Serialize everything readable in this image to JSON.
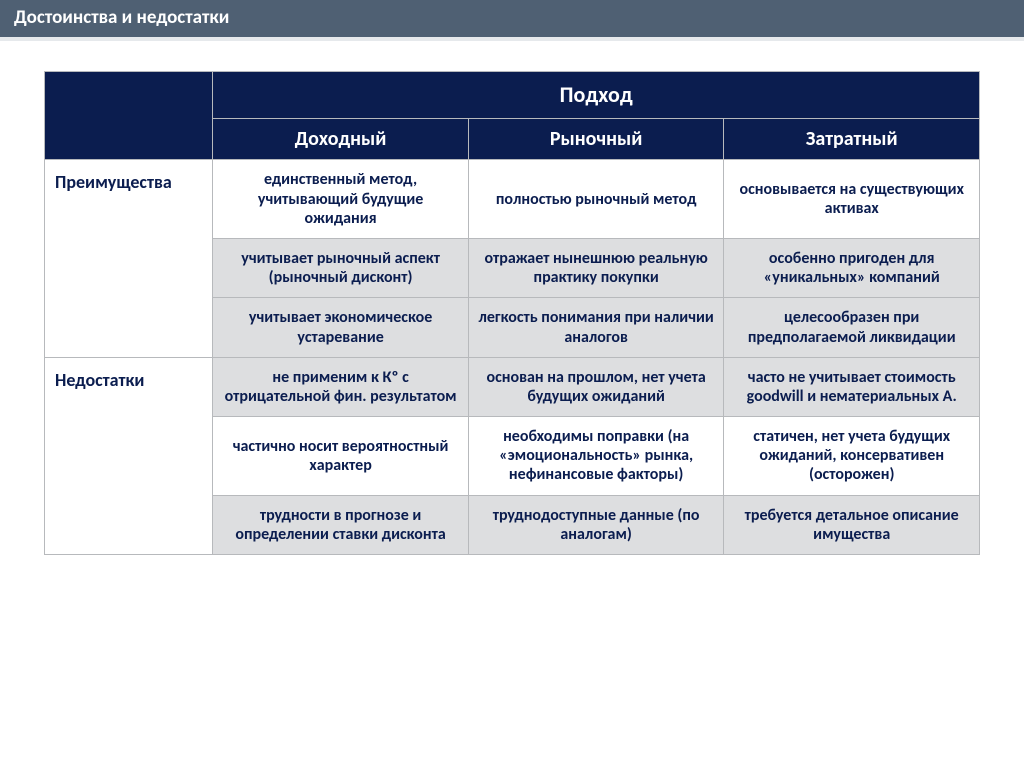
{
  "title": "Достоинства и недостатки",
  "table": {
    "mainHeader": "Подход",
    "subHeaders": [
      "Доходный",
      "Рыночный",
      "Затратный"
    ],
    "sections": [
      {
        "label": "Преимущества",
        "rows": [
          {
            "style": "white",
            "cells": [
              "единственный метод, учитывающий будущие ожидания",
              "полностью рыночный метод",
              "основывается на существующих активах"
            ]
          },
          {
            "style": "gray",
            "cells": [
              "учитывает рыночный аспект (рыночный дисконт)",
              "отражает нынешнюю реальную практику покупки",
              "особенно пригоден для «уникальных» компаний"
            ]
          },
          {
            "style": "gray",
            "cells": [
              "учитывает экономическое устаревание",
              "легкость понимания при наличии аналогов",
              "целесообразен при предполагаемой ликвидации"
            ]
          }
        ]
      },
      {
        "label": "Недостатки",
        "rows": [
          {
            "style": "gray",
            "cells": [
              "не применим к Кº с отрицательной фин. результатом",
              "основан на прошлом, нет учета будущих ожиданий",
              "часто не учитывает стоимость goodwill и нематериальных А."
            ]
          },
          {
            "style": "white",
            "cells": [
              "частично носит вероятностный характер",
              "необходимы поправки (на «эмоциональность» рынка, нефинансовые факторы)",
              "статичен, нет учета будущих ожиданий, консервативен (осторожен)"
            ]
          },
          {
            "style": "gray",
            "cells": [
              "трудности в прогнозе и определении ставки дисконта",
              "труднодоступные данные (по аналогам)",
              "требуется детальное описание имущества"
            ]
          }
        ]
      }
    ]
  },
  "colors": {
    "titleBarBg": "#4f6073",
    "titleBarText": "#ffffff",
    "headerDarkBg": "#0b1d4f",
    "headerText": "#ffffff",
    "cellText": "#0b1d4f",
    "cellWhiteBg": "#ffffff",
    "cellGrayBg": "#dddee0",
    "border": "#b7b9bc"
  },
  "fonts": {
    "titleSize": 19,
    "mainHeaderSize": 22,
    "subHeaderSize": 20,
    "rowLabelSize": 18,
    "cellSize": 16
  }
}
